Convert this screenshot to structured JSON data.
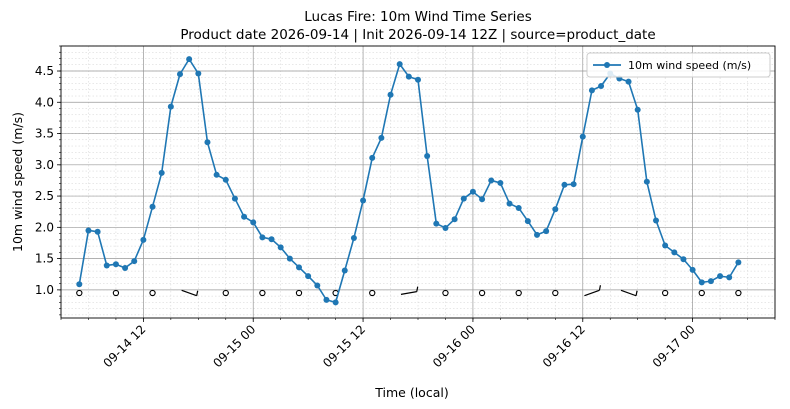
{
  "chart_data": {
    "type": "line",
    "title": "Lucas Fire: 10m Wind Time Series",
    "subtitle": "Product date 2026-09-14 | Init 2026-09-14 12Z | source=product_date",
    "xlabel": "Time (local)",
    "ylabel": "10m wind speed (m/s)",
    "x_start": "2026-09-14 05:00",
    "x_step_hours": 1,
    "xlim": [
      "2026-09-14 03:00",
      "2026-09-17 09:00"
    ],
    "ylim": [
      0.55,
      4.9
    ],
    "yticks": [
      1.0,
      1.5,
      2.0,
      2.5,
      3.0,
      3.5,
      4.0,
      4.5
    ],
    "ytick_labels": [
      "1.0",
      "1.5",
      "2.0",
      "2.5",
      "3.0",
      "3.5",
      "4.0",
      "4.5"
    ],
    "xtick_labels": [
      "09-14 12",
      "09-15 00",
      "09-15 12",
      "09-16 00",
      "09-16 12",
      "09-17 00"
    ],
    "xticks": [
      "2026-09-14 12:00",
      "2026-09-15 00:00",
      "2026-09-15 12:00",
      "2026-09-16 00:00",
      "2026-09-16 12:00",
      "2026-09-17 00:00"
    ],
    "grid": true,
    "legend_position": "top-right",
    "series": [
      {
        "name": "10m wind speed (m/s)",
        "color": "#1f77b4",
        "values": [
          1.09,
          1.95,
          1.93,
          1.39,
          1.41,
          1.35,
          1.46,
          1.8,
          2.33,
          2.87,
          3.93,
          4.45,
          4.69,
          4.46,
          3.36,
          2.84,
          2.76,
          2.46,
          2.17,
          2.08,
          1.84,
          1.81,
          1.68,
          1.5,
          1.36,
          1.22,
          1.07,
          0.84,
          0.8,
          1.31,
          1.83,
          2.43,
          3.11,
          3.43,
          4.12,
          4.61,
          4.41,
          4.36,
          3.14,
          2.06,
          1.99,
          2.13,
          2.46,
          2.57,
          2.45,
          2.75,
          2.71,
          2.38,
          2.31,
          2.1,
          1.88,
          1.94,
          2.29,
          2.68,
          2.69,
          3.45,
          4.19,
          4.26,
          4.46,
          4.38,
          4.33,
          3.88,
          2.73,
          2.11,
          1.71,
          1.6,
          1.49,
          1.32,
          1.12,
          1.14,
          1.22,
          1.2,
          1.44
        ]
      }
    ],
    "wind_barbs": {
      "y": 0.95,
      "x": [
        "2026-09-14 05:00",
        "2026-09-14 09:00",
        "2026-09-14 13:00",
        "2026-09-14 17:00",
        "2026-09-14 21:00",
        "2026-09-15 01:00",
        "2026-09-15 05:00",
        "2026-09-15 09:00",
        "2026-09-15 13:00",
        "2026-09-15 17:00",
        "2026-09-15 21:00",
        "2026-09-16 01:00",
        "2026-09-16 05:00",
        "2026-09-16 09:00",
        "2026-09-16 13:00",
        "2026-09-16 17:00",
        "2026-09-16 21:00",
        "2026-09-17 01:00",
        "2026-09-17 05:00"
      ],
      "kind": [
        "calm",
        "calm",
        "calm",
        "barb",
        "calm",
        "calm",
        "calm",
        "calm",
        "calm",
        "barb",
        "calm",
        "calm",
        "calm",
        "calm",
        "barb",
        "barb",
        "calm",
        "calm",
        "calm"
      ],
      "direction_deg": [
        0,
        0,
        0,
        290,
        0,
        0,
        0,
        0,
        0,
        260,
        0,
        0,
        0,
        0,
        250,
        290,
        0,
        0,
        0
      ]
    }
  }
}
